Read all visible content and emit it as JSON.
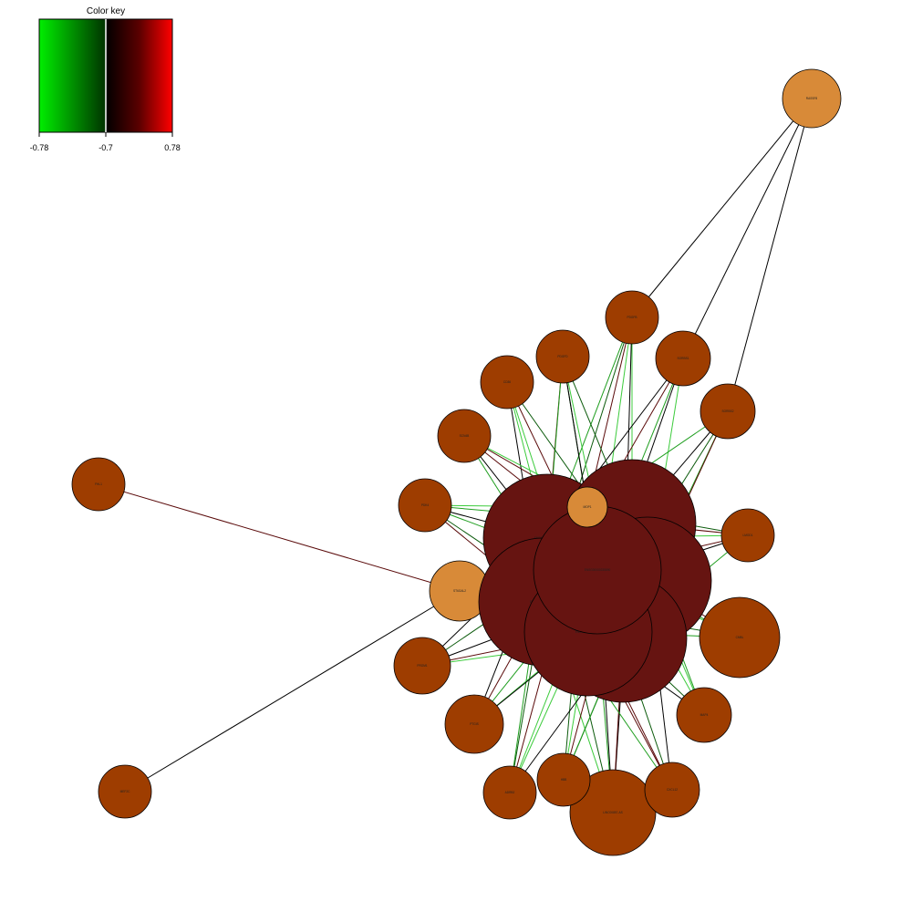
{
  "color_key": {
    "title": "Color key",
    "ticks": [
      "-0.78",
      "-0.7",
      "0.78"
    ],
    "gradient": [
      "#00ee00",
      "#003300",
      "#000000",
      "#5a0000",
      "#ff0000"
    ],
    "marker_color": "#ffffff"
  },
  "colors": {
    "mrna_node": "#9e3d00",
    "lncrna_node": "#661411",
    "hub_node": "#d88a38",
    "edge_green": "#1f9e1f",
    "edge_light_green": "#3ccb3c",
    "edge_dark_green": "#0b5a0b",
    "edge_dark_red": "#5a0a0a",
    "edge_black": "#000000",
    "node_stroke": "#000000"
  },
  "nodes": [
    {
      "id": "n_top",
      "label": "RASSF8",
      "kind": "hub"
    },
    {
      "id": "n_pdgfb",
      "label": "PDGFB",
      "kind": "mrna"
    },
    {
      "id": "n_sorbs1",
      "label": "SORBS1",
      "kind": "mrna"
    },
    {
      "id": "n_sorbs2",
      "label": "SORBS2",
      "kind": "mrna"
    },
    {
      "id": "n_pdgfd",
      "label": "PDGFD",
      "kind": "mrna"
    },
    {
      "id": "n_cd36",
      "label": "CD36",
      "kind": "mrna"
    },
    {
      "id": "n_scn4b",
      "label": "SCN4B",
      "kind": "mrna"
    },
    {
      "id": "n_pdk4",
      "label": "PDK4",
      "kind": "mrna"
    },
    {
      "id": "n_fhl1",
      "label": "FHL1",
      "kind": "mrna"
    },
    {
      "id": "n_hubc",
      "label": "ST6GAL2",
      "kind": "hub"
    },
    {
      "id": "n_prom1",
      "label": "PROM1",
      "kind": "mrna"
    },
    {
      "id": "n_lmod1",
      "label": "LMOD1",
      "kind": "mrna"
    },
    {
      "id": "n_cmbl",
      "label": "CMBL",
      "kind": "mrna"
    },
    {
      "id": "n_map4",
      "label": "MAP4",
      "kind": "mrna"
    },
    {
      "id": "n_hand",
      "label": "LINC00857-AS",
      "kind": "mrna"
    },
    {
      "id": "n_cxl",
      "label": "CXCL12",
      "kind": "mrna"
    },
    {
      "id": "n_hbbl",
      "label": "HBB",
      "kind": "mrna"
    },
    {
      "id": "n_adrb",
      "label": "ADRB2",
      "kind": "mrna"
    },
    {
      "id": "n_ptgs",
      "label": "PTGIS",
      "kind": "mrna"
    },
    {
      "id": "n_mef",
      "label": "MEF2C",
      "kind": "mrna"
    },
    {
      "id": "n_cntn",
      "label": "CNTN1",
      "kind": "mrna"
    },
    {
      "id": "n_mop",
      "label": "MOP1",
      "kind": "hub"
    },
    {
      "id": "l1",
      "label": "ENSG00000224027",
      "kind": "lncrna"
    },
    {
      "id": "l2",
      "label": "ENSG00000229619",
      "kind": "lncrna"
    },
    {
      "id": "l3",
      "label": "ENSG00000236279",
      "kind": "lncrna"
    },
    {
      "id": "l4",
      "label": "ENSG00000255319",
      "kind": "lncrna"
    },
    {
      "id": "l5",
      "label": "ENSG00000261771",
      "kind": "lncrna"
    },
    {
      "id": "l6",
      "label": "ENSG00000227097",
      "kind": "lncrna"
    },
    {
      "id": "l7",
      "label": "ENSG00000235890",
      "kind": "lncrna"
    },
    {
      "id": "l8",
      "label": "ENSG00000248550",
      "kind": "lncrna"
    }
  ]
}
